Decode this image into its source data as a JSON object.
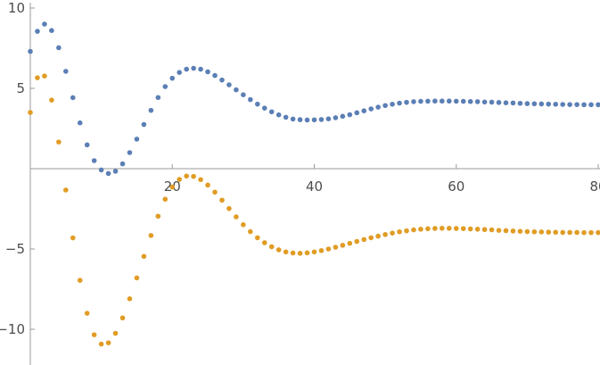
{
  "chart_data": {
    "type": "scatter",
    "title": "",
    "xlabel": "",
    "ylabel": "",
    "xlim": [
      0,
      80
    ],
    "ylim": [
      -12,
      10
    ],
    "grid": false,
    "legend": "none",
    "x_ticks": [
      20,
      40,
      60,
      80
    ],
    "x_tick_labels": [
      "20",
      "40",
      "60",
      "80"
    ],
    "y_ticks": [
      10,
      5,
      -5,
      -10
    ],
    "y_tick_labels": [
      "10",
      "5",
      "−5",
      "−10"
    ],
    "series": [
      {
        "color": "#5b7fb5",
        "values": [
          7.3,
          8.55,
          9.0,
          8.6,
          7.53,
          6.06,
          4.42,
          2.85,
          1.48,
          0.5,
          -0.08,
          -0.3,
          -0.16,
          0.3,
          1.0,
          1.84,
          2.75,
          3.63,
          4.43,
          5.11,
          5.63,
          5.99,
          6.19,
          6.25,
          6.19,
          6.03,
          5.8,
          5.52,
          5.22,
          4.91,
          4.6,
          4.3,
          4.02,
          3.77,
          3.54,
          3.35,
          3.2,
          3.09,
          3.05,
          3.03,
          3.04,
          3.06,
          3.1,
          3.17,
          3.26,
          3.36,
          3.48,
          3.6,
          3.72,
          3.83,
          3.93,
          4.01,
          4.08,
          4.13,
          4.17,
          4.19,
          4.2,
          4.21,
          4.21,
          4.21,
          4.2,
          4.19,
          4.18,
          4.17,
          4.15,
          4.14,
          4.12,
          4.1,
          4.09,
          4.07,
          4.05,
          4.04,
          4.03,
          4.02,
          4.01,
          4.0,
          3.99,
          3.99,
          3.98,
          3.98,
          3.98
        ]
      },
      {
        "color": "#e09c24",
        "values": [
          3.5,
          5.66,
          5.77,
          4.27,
          1.66,
          -1.33,
          -4.31,
          -6.95,
          -9.0,
          -10.34,
          -10.92,
          -10.84,
          -10.25,
          -9.29,
          -8.1,
          -6.8,
          -5.46,
          -4.16,
          -2.96,
          -1.9,
          -1.14,
          -0.67,
          -0.46,
          -0.48,
          -0.68,
          -1.02,
          -1.46,
          -1.96,
          -2.48,
          -3.0,
          -3.49,
          -3.92,
          -4.3,
          -4.61,
          -4.86,
          -5.05,
          -5.18,
          -5.25,
          -5.27,
          -5.24,
          -5.18,
          -5.1,
          -5.0,
          -4.89,
          -4.77,
          -4.65,
          -4.53,
          -4.41,
          -4.3,
          -4.2,
          -4.1,
          -4.01,
          -3.93,
          -3.87,
          -3.81,
          -3.77,
          -3.74,
          -3.72,
          -3.71,
          -3.71,
          -3.72,
          -3.73,
          -3.75,
          -3.77,
          -3.79,
          -3.81,
          -3.84,
          -3.86,
          -3.88,
          -3.9,
          -3.92,
          -3.93,
          -3.94,
          -3.95,
          -3.96,
          -3.97,
          -3.97,
          -3.97,
          -3.98,
          -3.98,
          -3.98
        ]
      }
    ]
  }
}
